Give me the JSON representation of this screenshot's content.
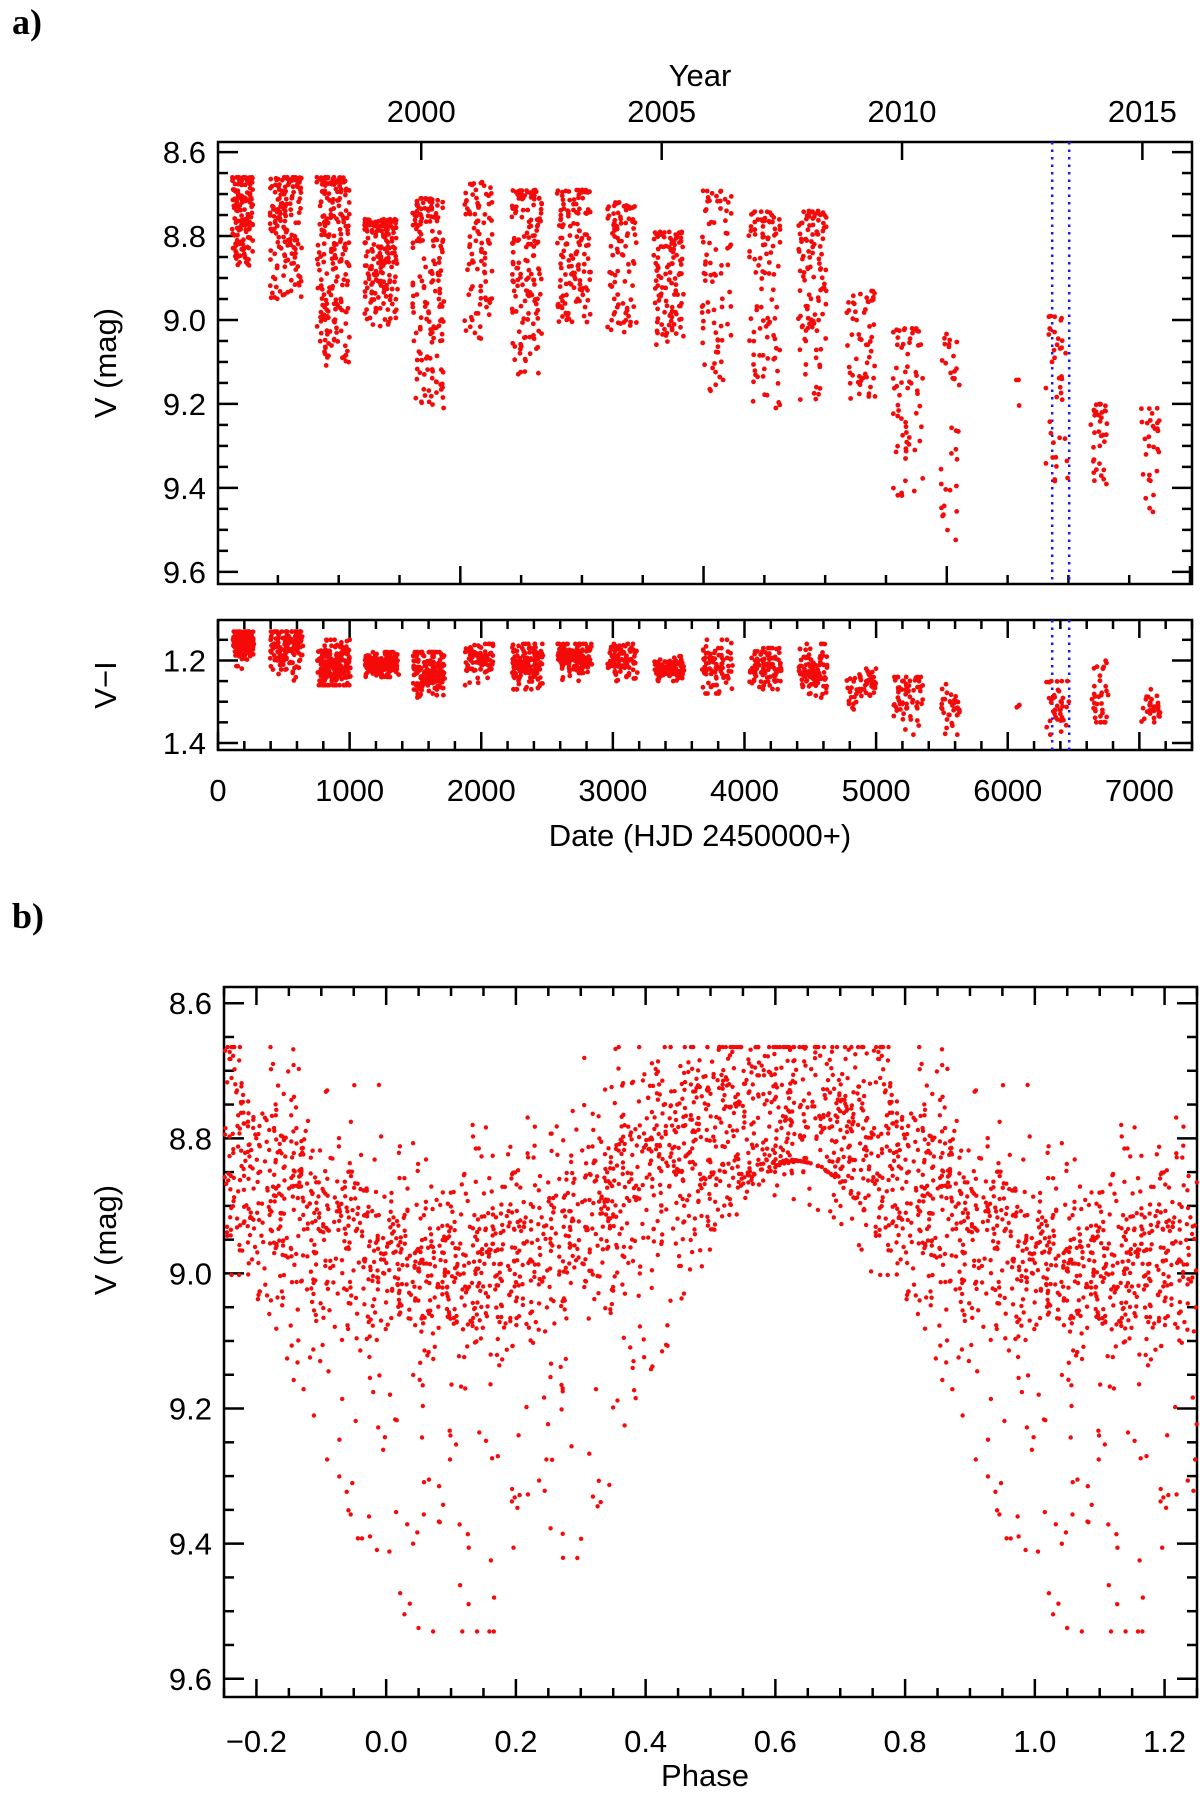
{
  "chart_data": [
    {
      "type": "scatter",
      "panel_tag": "a)",
      "title": "",
      "ylabel": "V (mag)",
      "xlabel": "",
      "top_axis": {
        "label": "Year",
        "ticks": [
          "2000",
          "2005",
          "2010",
          "2015"
        ],
        "tick_jd": [
          1544,
          3371,
          5197,
          7023
        ]
      },
      "xlim": [
        0,
        7400
      ],
      "ylim": [
        8.576,
        9.629
      ],
      "y_inverted": true,
      "yticks": [
        "8.6",
        "8.8",
        "9.0",
        "9.2",
        "9.4",
        "9.6"
      ],
      "marker_lines_jd": [
        6338,
        6467
      ],
      "marker_color": "#1a1ae6",
      "point_color": "#f50a0a",
      "seasons_columns": [
        "jd_start",
        "jd_end",
        "v_min",
        "v_max",
        "vi_center",
        "vi_min",
        "vi_max",
        "n_points"
      ],
      "seasons": [
        [
          106,
          265,
          8.66,
          8.87,
          1.16,
          1.13,
          1.22,
          150
        ],
        [
          394,
          636,
          8.66,
          8.95,
          1.17,
          1.13,
          1.25,
          160
        ],
        [
          750,
          1000,
          8.66,
          9.11,
          1.21,
          1.15,
          1.26,
          220
        ],
        [
          1114,
          1364,
          8.76,
          9.02,
          1.21,
          1.18,
          1.24,
          190
        ],
        [
          1477,
          1720,
          8.71,
          9.21,
          1.23,
          1.18,
          1.31,
          170
        ],
        [
          1871,
          2083,
          8.67,
          9.05,
          1.2,
          1.16,
          1.26,
          90
        ],
        [
          2227,
          2462,
          8.69,
          9.13,
          1.21,
          1.16,
          1.27,
          150
        ],
        [
          2576,
          2833,
          8.69,
          9.01,
          1.19,
          1.16,
          1.25,
          140
        ],
        [
          2947,
          3182,
          8.72,
          9.03,
          1.2,
          1.16,
          1.25,
          90
        ],
        [
          3311,
          3538,
          8.79,
          9.06,
          1.22,
          1.19,
          1.25,
          110
        ],
        [
          3674,
          3902,
          8.69,
          9.17,
          1.21,
          1.15,
          1.28,
          80
        ],
        [
          4030,
          4273,
          8.74,
          9.21,
          1.22,
          1.17,
          1.27,
          100
        ],
        [
          4409,
          4621,
          8.74,
          9.2,
          1.23,
          1.16,
          1.29,
          110
        ],
        [
          4773,
          4992,
          8.93,
          9.19,
          1.26,
          1.22,
          1.33,
          55
        ],
        [
          5129,
          5356,
          9.02,
          9.42,
          1.29,
          1.24,
          1.38,
          65
        ],
        [
          5492,
          5636,
          9.03,
          9.53,
          1.31,
          1.25,
          1.38,
          35
        ],
        [
          6053,
          6091,
          9.13,
          9.22,
          1.31,
          1.29,
          1.33,
          3
        ],
        [
          6280,
          6455,
          8.99,
          9.39,
          1.31,
          1.25,
          1.38,
          40
        ],
        [
          6630,
          6758,
          9.2,
          9.4,
          1.28,
          1.18,
          1.35,
          35
        ],
        [
          7000,
          7152,
          9.21,
          9.46,
          1.31,
          1.27,
          1.35,
          30
        ]
      ]
    },
    {
      "type": "scatter",
      "ylabel": "V−I",
      "xlabel": "Date (HJD 2450000+)",
      "xlim": [
        0,
        7400
      ],
      "xticks": [
        "0",
        "1000",
        "2000",
        "3000",
        "4000",
        "5000",
        "6000",
        "7000"
      ],
      "ylim": [
        1.102,
        1.417
      ],
      "y_inverted": true,
      "yticks": [
        "1.2",
        "1.4"
      ]
    },
    {
      "type": "scatter",
      "panel_tag": "b)",
      "ylabel": "V (mag)",
      "xlabel": "Phase",
      "xlim": [
        -0.25,
        1.25
      ],
      "ylim": [
        8.576,
        9.627
      ],
      "y_inverted": true,
      "xticks": [
        "−0.2",
        "0.0",
        "0.2",
        "0.4",
        "0.6",
        "0.8",
        "1.0",
        "1.2"
      ],
      "yticks": [
        "8.6",
        "8.8",
        "9.0",
        "9.2",
        "9.4",
        "9.6"
      ],
      "model": {
        "mean_mag": 8.87,
        "semi_amplitude": 0.12,
        "faintest_phase": 0.1,
        "band_scatter": 0.075,
        "faint_tail_fraction": 0.16,
        "faint_tail_max": 0.55,
        "n_points": 2100
      }
    }
  ]
}
